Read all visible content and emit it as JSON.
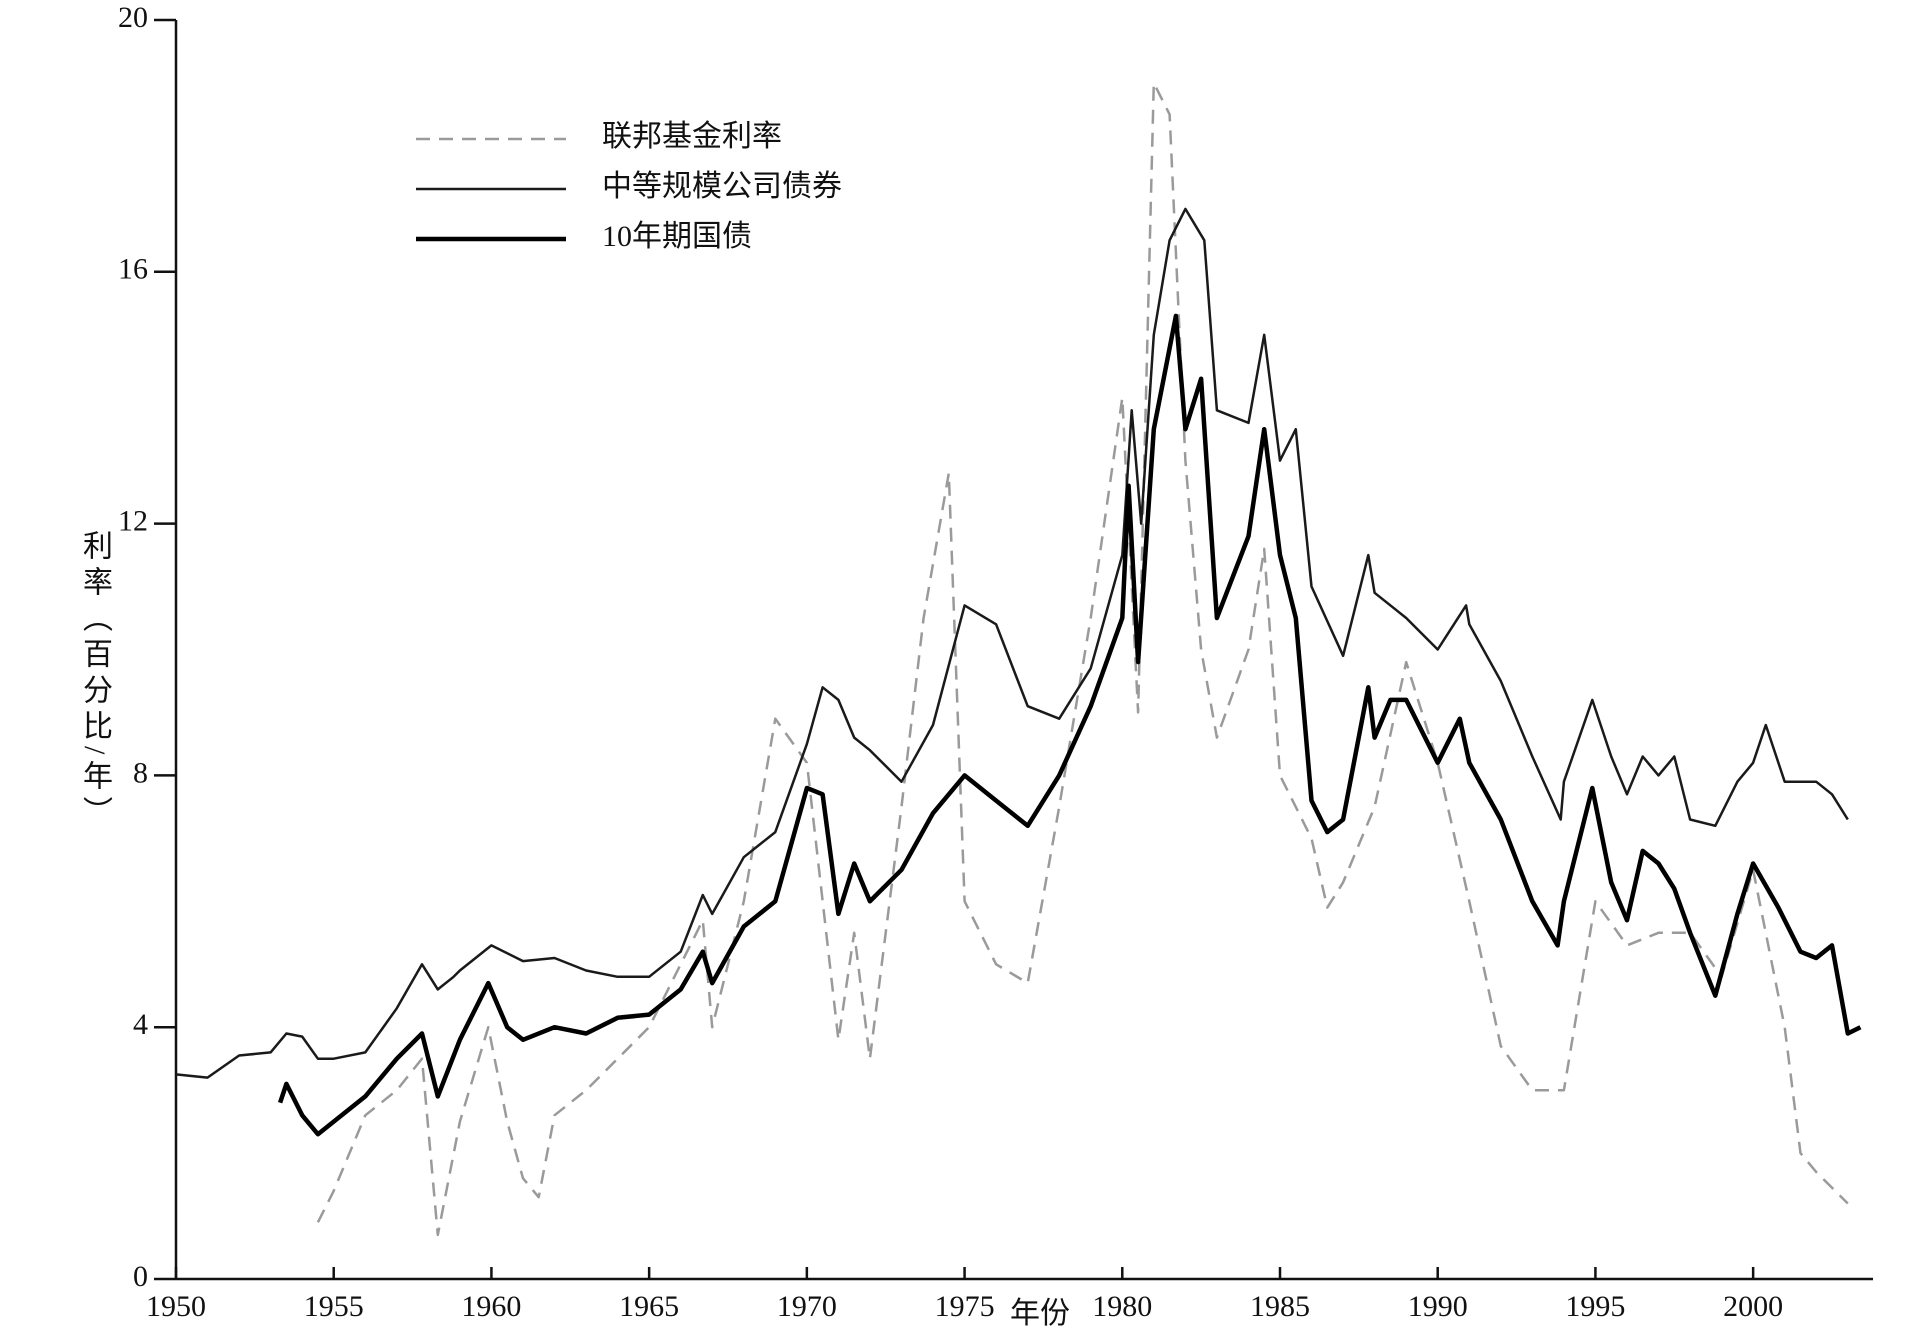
{
  "chart_data": {
    "type": "line",
    "x_label": "年份",
    "y_label": "利率（百分比/年）",
    "xlim": [
      1950,
      2003.8
    ],
    "ylim": [
      0,
      20
    ],
    "xticks": [
      1950,
      1955,
      1960,
      1965,
      1970,
      1975,
      1980,
      1985,
      1990,
      1995,
      2000
    ],
    "yticks": [
      0,
      4,
      8,
      12,
      16,
      20
    ],
    "legend": "upper left",
    "series": [
      {
        "name": "联邦基金利率",
        "color": "#9a9a9a",
        "line_style": "dashed",
        "line_weight": "thin",
        "x": [
          1954.5,
          1955,
          1956,
          1957,
          1957.8,
          1958.3,
          1959,
          1959.9,
          1960.5,
          1961,
          1961.5,
          1962,
          1963,
          1964,
          1965,
          1966,
          1966.7,
          1967,
          1968,
          1969,
          1970,
          1971,
          1971.5,
          1972,
          1973,
          1973.7,
          1974.5,
          1975,
          1976,
          1977,
          1978,
          1979,
          1980,
          1980.5,
          1981,
          1981.5,
          1982,
          1982.5,
          1983,
          1984,
          1984.5,
          1985,
          1986,
          1986.5,
          1987,
          1988,
          1989,
          1990,
          1991,
          1992,
          1993,
          1994,
          1995,
          1996,
          1997,
          1998,
          1999,
          2000,
          2001,
          2001.5,
          2002,
          2003
        ],
        "values": [
          0.9,
          1.4,
          2.6,
          3.0,
          3.5,
          0.7,
          2.5,
          4.0,
          2.5,
          1.6,
          1.3,
          2.6,
          3.0,
          3.5,
          4.0,
          5.0,
          5.7,
          4.0,
          6.0,
          8.9,
          8.2,
          3.8,
          5.5,
          3.5,
          7.5,
          10.5,
          12.8,
          6.0,
          5.0,
          4.7,
          7.5,
          10.5,
          14.0,
          9.0,
          19.0,
          18.5,
          13.0,
          10.0,
          8.6,
          10.0,
          11.6,
          8.0,
          7.0,
          5.9,
          6.3,
          7.5,
          9.8,
          8.2,
          6.0,
          3.7,
          3.0,
          3.0,
          6.0,
          5.3,
          5.5,
          5.5,
          4.8,
          6.5,
          4.0,
          2.0,
          1.7,
          1.2
        ]
      },
      {
        "name": "中等规模公司债券",
        "color": "#1a1a1a",
        "line_style": "solid",
        "line_weight": "thin",
        "x": [
          1950,
          1951,
          1952,
          1953,
          1953.5,
          1954,
          1954.5,
          1955,
          1956,
          1957,
          1957.8,
          1958.3,
          1958.8,
          1959,
          1960,
          1961,
          1962,
          1963,
          1964,
          1965,
          1966,
          1966.7,
          1967,
          1968,
          1969,
          1970,
          1970.5,
          1971,
          1971.5,
          1972,
          1973,
          1974,
          1975,
          1976,
          1977,
          1978,
          1979,
          1980,
          1980.3,
          1980.6,
          1981,
          1981.5,
          1982,
          1982.6,
          1983,
          1984,
          1984.5,
          1985,
          1985.5,
          1986,
          1987,
          1987.8,
          1988,
          1989,
          1990,
          1990.9,
          1991,
          1992,
          1993,
          1993.9,
          1994,
          1994.9,
          1995.5,
          1996,
          1996.5,
          1997,
          1997.5,
          1998,
          1998.8,
          1999.5,
          2000,
          2000.4,
          2001,
          2002,
          2002.5,
          2003
        ],
        "values": [
          3.25,
          3.2,
          3.55,
          3.6,
          3.9,
          3.85,
          3.5,
          3.5,
          3.6,
          4.3,
          5.0,
          4.6,
          4.8,
          4.9,
          5.3,
          5.05,
          5.1,
          4.9,
          4.8,
          4.8,
          5.2,
          6.1,
          5.8,
          6.7,
          7.1,
          8.5,
          9.4,
          9.2,
          8.6,
          8.4,
          7.9,
          8.8,
          10.7,
          10.4,
          9.1,
          8.9,
          9.7,
          11.5,
          13.8,
          12.0,
          15.0,
          16.5,
          17.0,
          16.5,
          13.8,
          13.6,
          15.0,
          13.0,
          13.5,
          11.0,
          9.9,
          11.5,
          10.9,
          10.5,
          10.0,
          10.7,
          10.4,
          9.5,
          8.3,
          7.3,
          7.9,
          9.2,
          8.3,
          7.7,
          8.3,
          8.0,
          8.3,
          7.3,
          7.2,
          7.9,
          8.2,
          8.8,
          7.9,
          7.9,
          7.7,
          7.3
        ]
      },
      {
        "name": "10年期国债",
        "color": "#000000",
        "line_style": "solid",
        "line_weight": "thick",
        "x": [
          1953.3,
          1953.5,
          1954,
          1954.5,
          1955,
          1956,
          1957,
          1957.8,
          1958.3,
          1959,
          1959.9,
          1960.5,
          1961,
          1962,
          1963,
          1964,
          1965,
          1966,
          1966.7,
          1967,
          1968,
          1969,
          1970,
          1970.5,
          1971,
          1971.5,
          1972,
          1973,
          1974,
          1975,
          1976,
          1977,
          1978,
          1979,
          1980,
          1980.2,
          1980.5,
          1981,
          1981.7,
          1982,
          1982.5,
          1983,
          1984,
          1984.5,
          1985,
          1985.5,
          1986,
          1986.5,
          1987,
          1987.8,
          1988,
          1988.5,
          1989,
          1990,
          1990.7,
          1991,
          1992,
          1993,
          1993.8,
          1994,
          1994.9,
          1995.5,
          1996,
          1996.5,
          1997,
          1997.5,
          1998,
          1998.8,
          1999.5,
          2000,
          2000.8,
          2001.5,
          2002,
          2002.5,
          2003,
          2003.4
        ],
        "values": [
          2.8,
          3.1,
          2.6,
          2.3,
          2.5,
          2.9,
          3.5,
          3.9,
          2.9,
          3.8,
          4.7,
          4.0,
          3.8,
          4.0,
          3.9,
          4.15,
          4.2,
          4.6,
          5.2,
          4.7,
          5.6,
          6.0,
          7.8,
          7.7,
          5.8,
          6.6,
          6.0,
          6.5,
          7.4,
          8.0,
          7.6,
          7.2,
          8.0,
          9.1,
          10.5,
          12.6,
          9.8,
          13.5,
          15.3,
          13.5,
          14.3,
          10.5,
          11.8,
          13.5,
          11.5,
          10.5,
          7.6,
          7.1,
          7.3,
          9.4,
          8.6,
          9.2,
          9.2,
          8.2,
          8.9,
          8.2,
          7.3,
          6.0,
          5.3,
          6.0,
          7.8,
          6.3,
          5.7,
          6.8,
          6.6,
          6.2,
          5.5,
          4.5,
          5.8,
          6.6,
          5.9,
          5.2,
          5.1,
          5.3,
          3.9,
          4.0
        ]
      }
    ]
  }
}
